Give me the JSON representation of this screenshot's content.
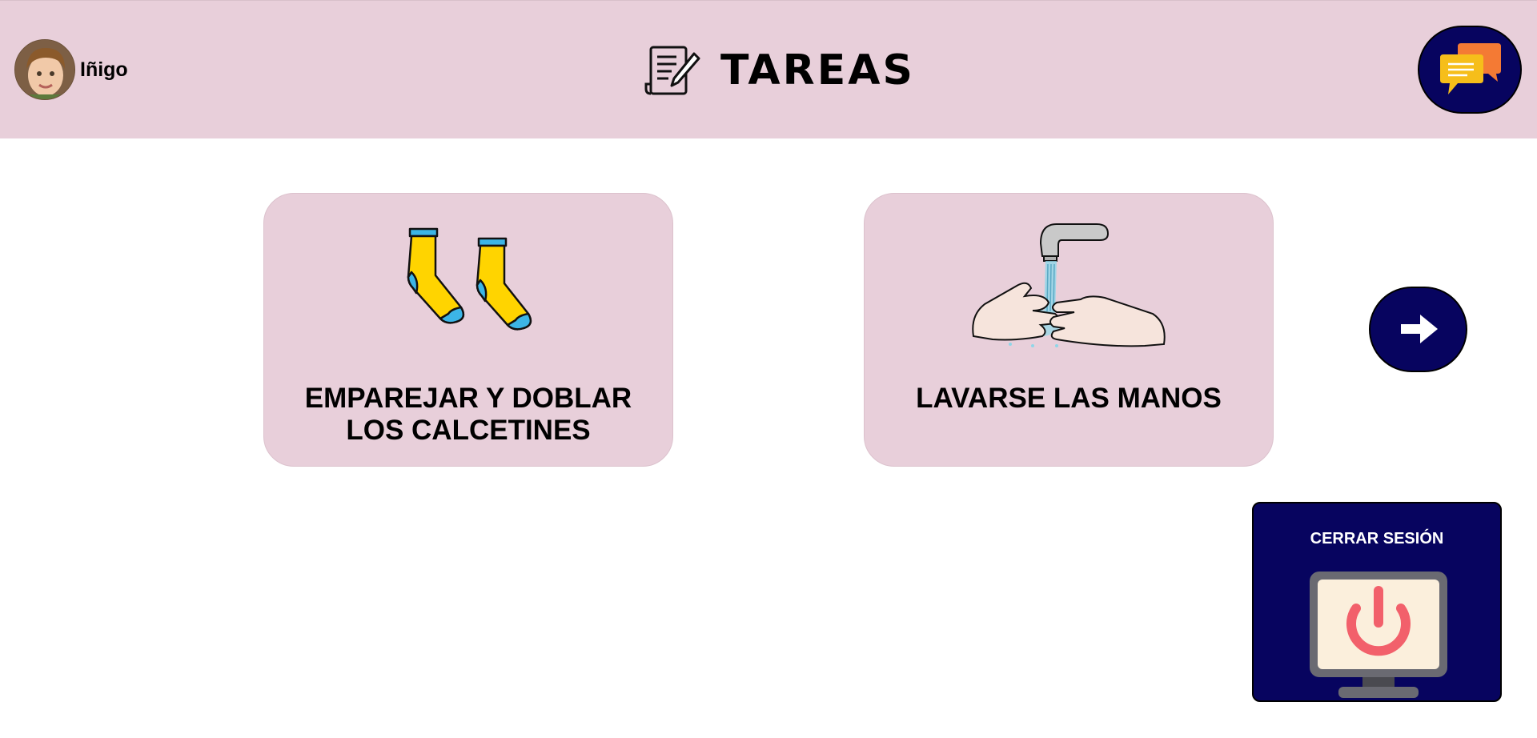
{
  "header": {
    "user_name": "Iñigo",
    "title": "TAREAS"
  },
  "tasks": [
    {
      "label": "EMPAREJAR Y DOBLAR LOS CALCETINES",
      "icon": "socks-icon"
    },
    {
      "label": "LAVARSE LAS MANOS",
      "icon": "hand-washing-icon"
    }
  ],
  "logout": {
    "label": "CERRAR SESIÓN",
    "icon": "power-monitor-icon"
  },
  "icons": {
    "title": "notepad-pencil-icon",
    "chat": "chat-bubbles-icon",
    "next": "arrow-right-icon"
  },
  "colors": {
    "header_bg": "#e8cfda",
    "card_bg": "#e8cfda",
    "button_bg": "#07045f",
    "power_red": "#f2606b"
  }
}
